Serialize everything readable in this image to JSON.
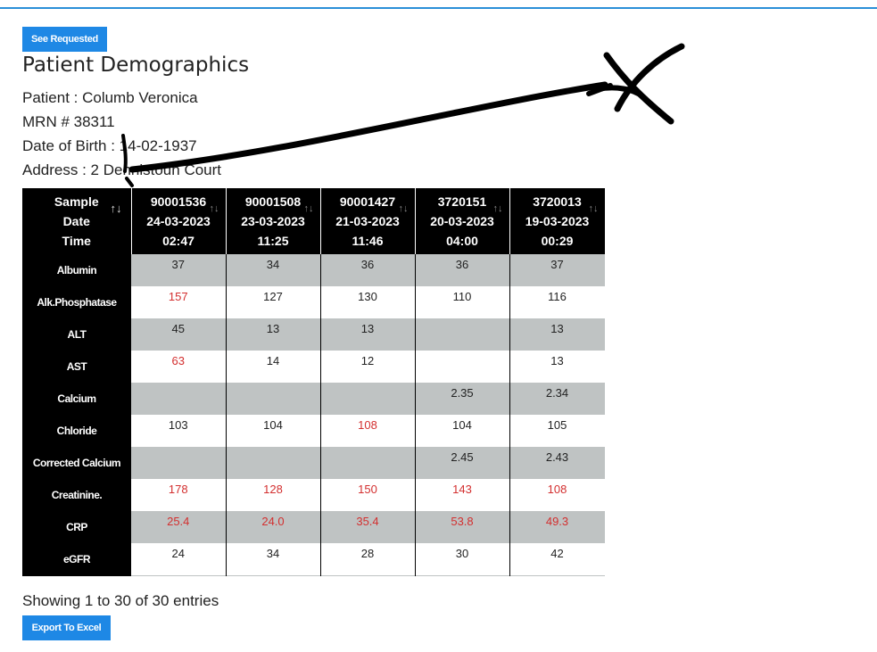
{
  "buttons": {
    "see_requested": "See Requested",
    "export_excel": "Export To Excel"
  },
  "page_title": "Patient Demographics",
  "patient": {
    "name_line": "Patient : Columb Veronica",
    "mrn_line": "MRN # 38311",
    "dob_line": "Date of Birth : 14-02-1937",
    "address_line": "Address : 2 Dennistoun Court"
  },
  "table": {
    "header_label": [
      "Sample",
      "Date",
      "Time"
    ],
    "columns": [
      {
        "sample": "90001536",
        "date": "24-03-2023",
        "time": "02:47"
      },
      {
        "sample": "90001508",
        "date": "23-03-2023",
        "time": "11:25"
      },
      {
        "sample": "90001427",
        "date": "21-03-2023",
        "time": "11:46"
      },
      {
        "sample": "3720151",
        "date": "20-03-2023",
        "time": "04:00"
      },
      {
        "sample": "3720013",
        "date": "19-03-2023",
        "time": "00:29"
      }
    ],
    "sort_glyph": "↑↓",
    "rows": [
      {
        "label": "Albumin",
        "values": [
          "37",
          "34",
          "36",
          "36",
          "37"
        ],
        "abnormal": [
          false,
          false,
          false,
          false,
          false
        ]
      },
      {
        "label": "Alk.Phosphatase",
        "values": [
          "157",
          "127",
          "130",
          "110",
          "116"
        ],
        "abnormal": [
          true,
          false,
          false,
          false,
          false
        ]
      },
      {
        "label": "ALT",
        "values": [
          "45",
          "13",
          "13",
          "",
          "13"
        ],
        "abnormal": [
          false,
          false,
          false,
          false,
          false
        ]
      },
      {
        "label": "AST",
        "values": [
          "63",
          "14",
          "12",
          "",
          "13"
        ],
        "abnormal": [
          true,
          false,
          false,
          false,
          false
        ]
      },
      {
        "label": "Calcium",
        "values": [
          "",
          "",
          "",
          "2.35",
          "2.34"
        ],
        "abnormal": [
          false,
          false,
          false,
          false,
          false
        ]
      },
      {
        "label": "Chloride",
        "values": [
          "103",
          "104",
          "108",
          "104",
          "105"
        ],
        "abnormal": [
          false,
          false,
          true,
          false,
          false
        ]
      },
      {
        "label": "Corrected Calcium",
        "values": [
          "",
          "",
          "",
          "2.45",
          "2.43"
        ],
        "abnormal": [
          false,
          false,
          false,
          false,
          false
        ]
      },
      {
        "label": "Creatinine.",
        "values": [
          "178",
          "128",
          "150",
          "143",
          "108"
        ],
        "abnormal": [
          true,
          true,
          true,
          true,
          true
        ]
      },
      {
        "label": "CRP",
        "values": [
          "25.4",
          "24.0",
          "35.4",
          "53.8",
          "49.3"
        ],
        "abnormal": [
          true,
          true,
          true,
          true,
          true
        ]
      },
      {
        "label": "eGFR",
        "values": [
          "24",
          "34",
          "28",
          "30",
          "42"
        ],
        "abnormal": [
          false,
          false,
          false,
          false,
          false
        ]
      }
    ]
  },
  "showing_text": "Showing 1 to 30 of 30 entries",
  "colors": {
    "accent": "#1e88e5",
    "abnormal": "#d32f2f",
    "row_gray": "#bfc3c3",
    "header": "#000000"
  }
}
